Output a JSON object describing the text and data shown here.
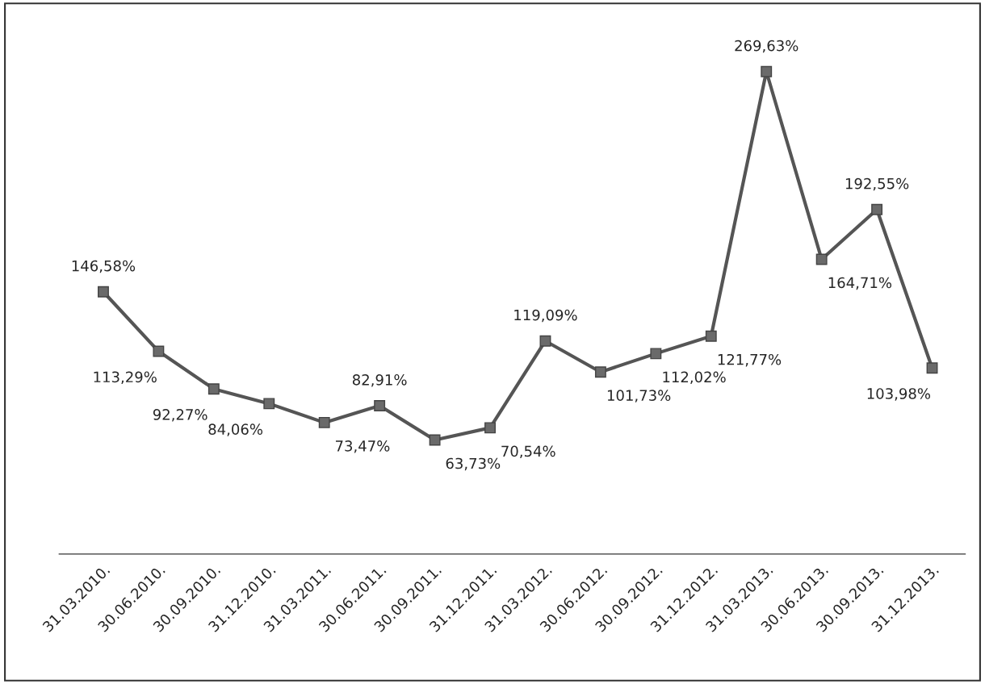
{
  "chart_data": {
    "type": "line",
    "categories": [
      "31.03.2010.",
      "30.06.2010.",
      "30.09.2010.",
      "31.12.2010.",
      "31.03.2011.",
      "30.06.2011.",
      "30.09.2011.",
      "31.12.2011.",
      "31.03.2012.",
      "30.06.2012.",
      "30.09.2012.",
      "31.12.2012.",
      "31.03.2013.",
      "30.06.2013.",
      "30.09.2013.",
      "31.12.2013."
    ],
    "series": [
      {
        "color": "#555555",
        "values": [
          146.58,
          113.29,
          92.27,
          84.06,
          73.47,
          82.91,
          63.73,
          70.54,
          119.09,
          101.73,
          112.02,
          121.77,
          269.63,
          164.71,
          192.55,
          103.98
        ],
        "value_labels": [
          "146,58%",
          "113,29%",
          "92,27%",
          "84,06%",
          "73,47%",
          "82,91%",
          "63,73%",
          "70,54%",
          "119,09%",
          "101,73%",
          "112,02%",
          "121,77%",
          "269,63%",
          "164,71%",
          "192,55%",
          "103,98%"
        ]
      }
    ],
    "tick_labels": "x",
    "marker": "square",
    "line_style": "solid"
  }
}
